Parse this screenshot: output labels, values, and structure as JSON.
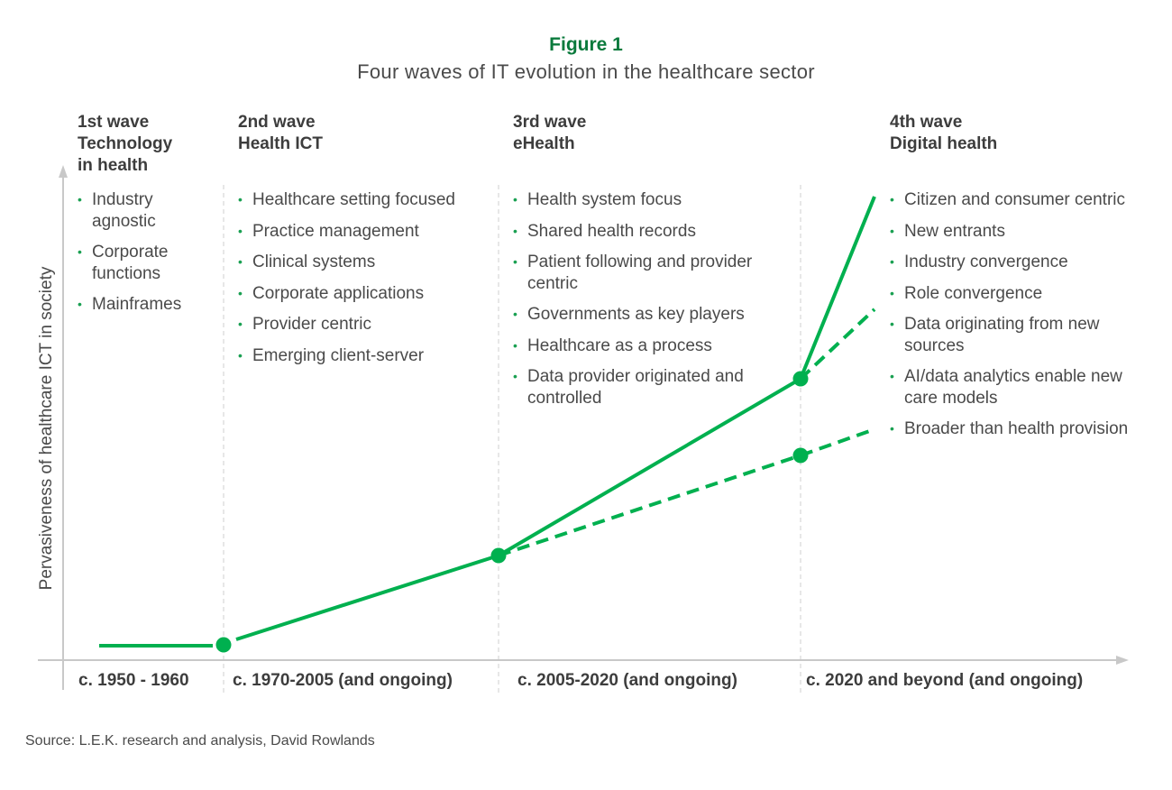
{
  "figure_label": "Figure 1",
  "title": "Four waves of IT evolution in the healthcare sector",
  "y_axis_label": "Pervasiveness of healthcare ICT in society",
  "colors": {
    "line": "#00b04f",
    "title": "#0a7a3c",
    "text": "#4a4a4a",
    "axis": "#c8c8c8"
  },
  "waves": [
    {
      "heading": [
        "1st wave",
        "Technology",
        "in health"
      ],
      "period": "c. 1950 - 1960",
      "bullets": [
        "Industry agnostic",
        "Corporate functions",
        "Mainframes"
      ]
    },
    {
      "heading": [
        "2nd wave",
        "Health ICT"
      ],
      "period": "c. 1970-2005 (and ongoing)",
      "bullets": [
        "Healthcare setting focused",
        "Practice management",
        "Clinical systems",
        "Corporate applications",
        "Provider centric",
        "Emerging client-server"
      ]
    },
    {
      "heading": [
        "3rd wave",
        "eHealth"
      ],
      "period": "c. 2005-2020 (and ongoing)",
      "bullets": [
        "Health system focus",
        "Shared health records",
        "Patient following and provider centric",
        "Governments as key players",
        "Healthcare as a process",
        "Data provider originated and controlled"
      ]
    },
    {
      "heading": [
        "4th wave",
        "Digital health"
      ],
      "period": "c. 2020 and beyond (and ongoing)",
      "bullets": [
        "Citizen and consumer centric",
        "New entrants",
        "Industry convergence",
        "Role convergence",
        "Data originating from new sources",
        "AI/data analytics enable new care models",
        "Broader than health provision"
      ]
    }
  ],
  "source": "Source: L.E.K. research and analysis, David Rowlands"
}
